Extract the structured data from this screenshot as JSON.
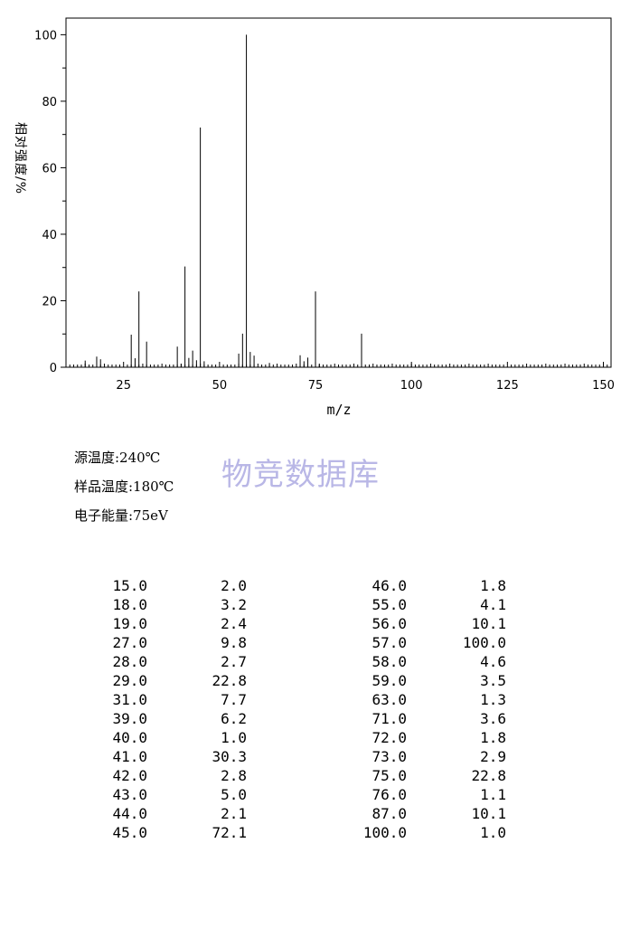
{
  "chart_data": {
    "type": "bar",
    "title": "",
    "xlabel": "m/z",
    "ylabel": "相对强度/%",
    "xlim": [
      10,
      152
    ],
    "ylim": [
      0,
      105
    ],
    "x_ticks": [
      25,
      50,
      75,
      100,
      125,
      150
    ],
    "y_ticks": [
      0,
      20,
      40,
      60,
      80,
      100
    ],
    "grid": false,
    "series": [
      {
        "x": [
          15,
          18,
          19,
          27,
          28,
          29,
          31,
          39,
          40,
          41,
          42,
          43,
          44,
          45,
          46,
          55,
          56,
          57,
          58,
          59,
          63,
          71,
          72,
          73,
          75,
          76,
          87,
          100
        ],
        "values": [
          2.0,
          3.2,
          2.4,
          9.8,
          2.7,
          22.8,
          7.7,
          6.2,
          1.0,
          30.3,
          2.8,
          5.0,
          2.1,
          72.1,
          1.8,
          4.1,
          10.1,
          100.0,
          4.6,
          3.5,
          1.3,
          3.6,
          1.8,
          2.9,
          22.8,
          1.1,
          10.1,
          1.0
        ]
      }
    ]
  },
  "meta": {
    "source_temp": "源温度:240℃",
    "sample_temp": "样品温度:180℃",
    "electron_energy": "电子能量:75eV"
  },
  "watermark": "物竞数据库",
  "peak_table": {
    "left": [
      [
        "15.0",
        "2.0"
      ],
      [
        "18.0",
        "3.2"
      ],
      [
        "19.0",
        "2.4"
      ],
      [
        "27.0",
        "9.8"
      ],
      [
        "28.0",
        "2.7"
      ],
      [
        "29.0",
        "22.8"
      ],
      [
        "31.0",
        "7.7"
      ],
      [
        "39.0",
        "6.2"
      ],
      [
        "40.0",
        "1.0"
      ],
      [
        "41.0",
        "30.3"
      ],
      [
        "42.0",
        "2.8"
      ],
      [
        "43.0",
        "5.0"
      ],
      [
        "44.0",
        "2.1"
      ],
      [
        "45.0",
        "72.1"
      ]
    ],
    "right": [
      [
        "46.0",
        "1.8"
      ],
      [
        "55.0",
        "4.1"
      ],
      [
        "56.0",
        "10.1"
      ],
      [
        "57.0",
        "100.0"
      ],
      [
        "58.0",
        "4.6"
      ],
      [
        "59.0",
        "3.5"
      ],
      [
        "63.0",
        "1.3"
      ],
      [
        "71.0",
        "3.6"
      ],
      [
        "72.0",
        "1.8"
      ],
      [
        "73.0",
        "2.9"
      ],
      [
        "75.0",
        "22.8"
      ],
      [
        "76.0",
        "1.1"
      ],
      [
        "87.0",
        "10.1"
      ],
      [
        "100.0",
        "1.0"
      ]
    ]
  }
}
